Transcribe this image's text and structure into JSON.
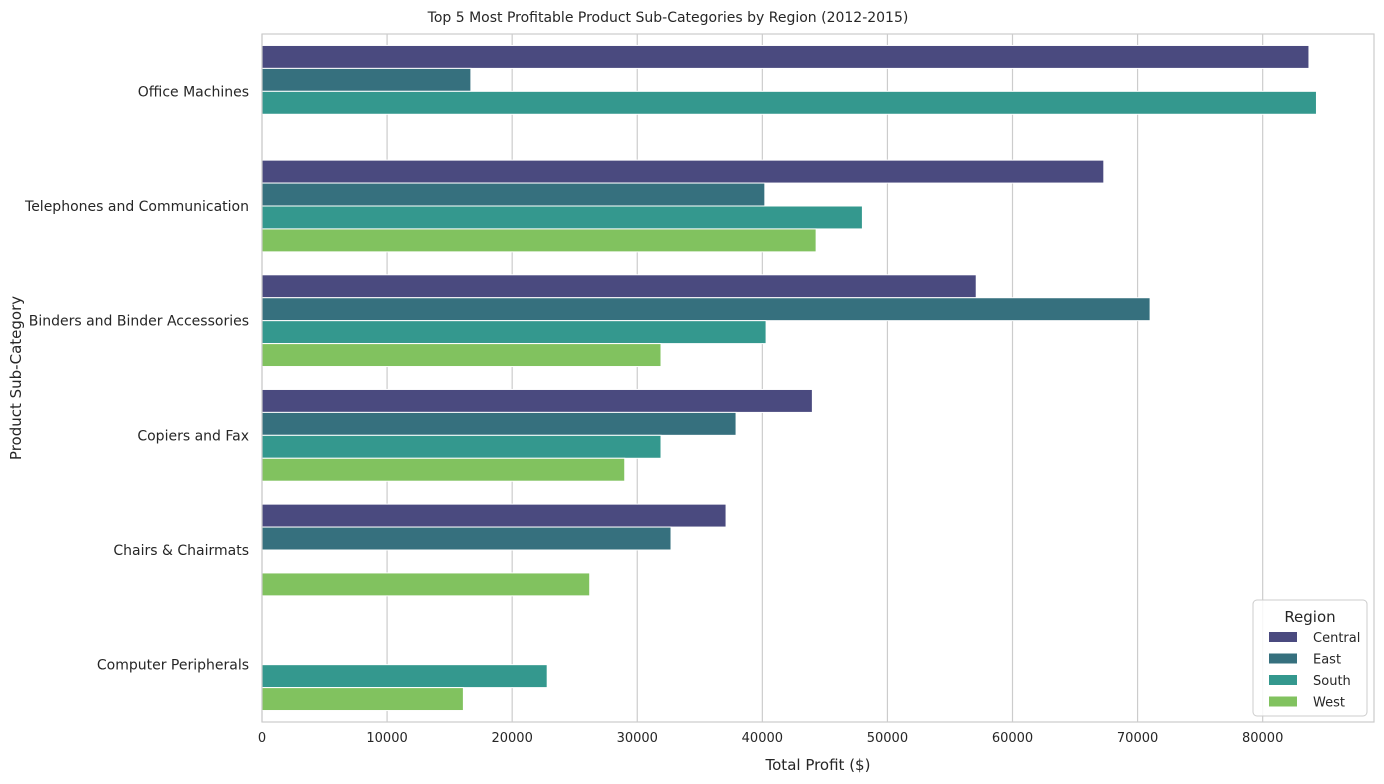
{
  "chart_data": {
    "type": "bar",
    "orientation": "horizontal",
    "title": "Top 5 Most Profitable Product Sub-Categories by Region (2012-2015)",
    "xlabel": "Total Profit ($)",
    "ylabel": "Product Sub-Category",
    "xlim": [
      0,
      88900
    ],
    "xticks": [
      0,
      10000,
      20000,
      30000,
      40000,
      50000,
      60000,
      70000,
      80000
    ],
    "grid": true,
    "legend": {
      "title": "Region",
      "placement": "bottom-right"
    },
    "categories": [
      "Office Machines",
      "Telephones and Communication",
      "Binders and Binder Accessories",
      "Copiers and Fax",
      "Chairs & Chairmats",
      "Computer Peripherals"
    ],
    "series": [
      {
        "name": "Central",
        "color": "#4a4a7f",
        "values": [
          83700,
          67300,
          57100,
          44000,
          37100,
          null
        ]
      },
      {
        "name": "East",
        "color": "#36707e",
        "values": [
          16700,
          40200,
          71000,
          37900,
          32700,
          null
        ]
      },
      {
        "name": "South",
        "color": "#34988e",
        "values": [
          84300,
          48000,
          40300,
          31900,
          null,
          22800
        ]
      },
      {
        "name": "West",
        "color": "#81c25f",
        "values": [
          null,
          44300,
          31900,
          29000,
          26200,
          16100
        ]
      }
    ]
  }
}
